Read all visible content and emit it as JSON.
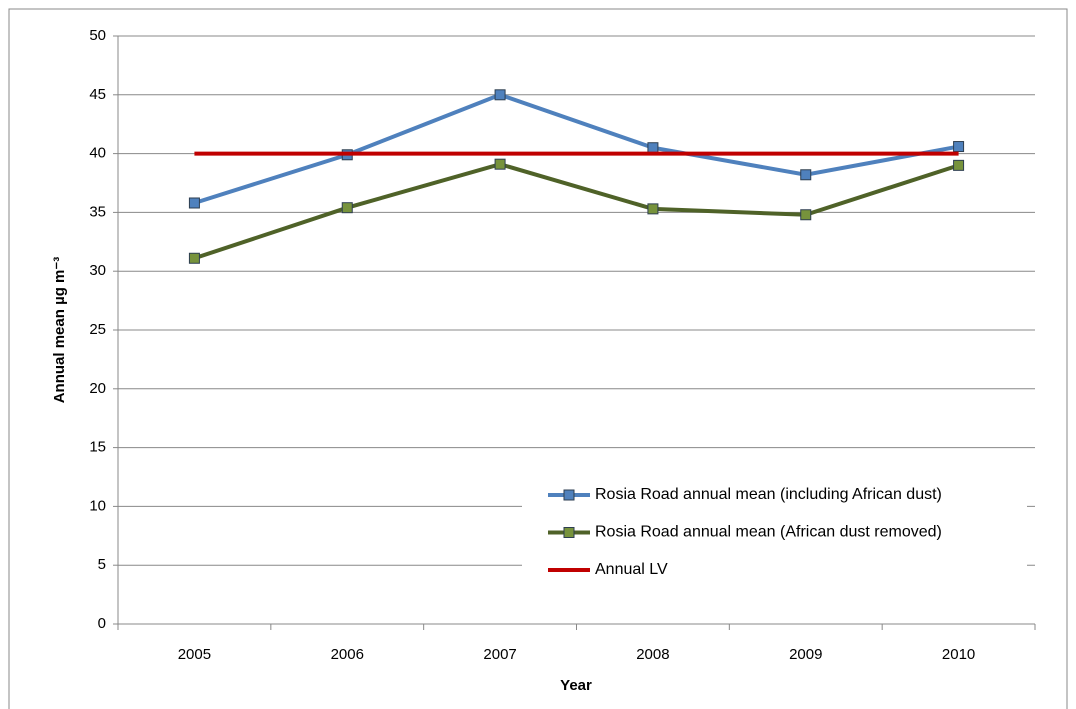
{
  "chart_data": {
    "type": "line",
    "x_label": "Year",
    "y_label": "Annual mean µg m⁻³",
    "categories": [
      "2005",
      "2006",
      "2007",
      "2008",
      "2009",
      "2010"
    ],
    "series": [
      {
        "name": "Rosia Road annual mean (including African dust)",
        "color": "#4f81bd",
        "marker": "square",
        "marker_color": "#4f81bd",
        "values": [
          35.8,
          39.9,
          45.0,
          40.5,
          38.2,
          40.6
        ]
      },
      {
        "name": "Rosia Road annual mean (African dust removed)",
        "color": "#4f6228",
        "marker": "square",
        "marker_color": "#77933c",
        "values": [
          31.1,
          35.4,
          39.1,
          35.3,
          34.8,
          39.0
        ]
      },
      {
        "name": "Annual LV",
        "color": "#c00000",
        "marker": "none",
        "values": [
          40,
          40,
          40,
          40,
          40,
          40
        ]
      }
    ],
    "ylim": [
      0,
      50
    ],
    "yticks": [
      0,
      5,
      10,
      15,
      20,
      25,
      30,
      35,
      40,
      45,
      50
    ],
    "grid": true,
    "legend": "lower right"
  }
}
